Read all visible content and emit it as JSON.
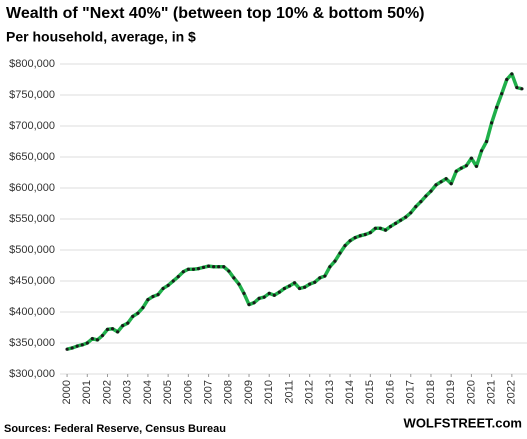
{
  "chart_data": {
    "type": "line",
    "title": "Wealth of \"Next 40%\" (between top 10% & bottom 50%)",
    "subtitle": "Per household, average, in $",
    "source": "Sources: Federal Reserve, Census Bureau",
    "watermark": "WOLFSTREET.com",
    "x": [
      2000,
      2000.25,
      2000.5,
      2000.75,
      2001,
      2001.25,
      2001.5,
      2001.75,
      2002,
      2002.25,
      2002.5,
      2002.75,
      2003,
      2003.25,
      2003.5,
      2003.75,
      2004,
      2004.25,
      2004.5,
      2004.75,
      2005,
      2005.25,
      2005.5,
      2005.75,
      2006,
      2006.25,
      2006.5,
      2006.75,
      2007,
      2007.25,
      2007.5,
      2007.75,
      2008,
      2008.25,
      2008.5,
      2008.75,
      2009,
      2009.25,
      2009.5,
      2009.75,
      2010,
      2010.25,
      2010.5,
      2010.75,
      2011,
      2011.25,
      2011.5,
      2011.75,
      2012,
      2012.25,
      2012.5,
      2012.75,
      2013,
      2013.25,
      2013.5,
      2013.75,
      2014,
      2014.25,
      2014.5,
      2014.75,
      2015,
      2015.25,
      2015.5,
      2015.75,
      2016,
      2016.25,
      2016.5,
      2016.75,
      2017,
      2017.25,
      2017.5,
      2017.75,
      2018,
      2018.25,
      2018.5,
      2018.75,
      2019,
      2019.25,
      2019.5,
      2019.75,
      2020,
      2020.25,
      2020.5,
      2020.75,
      2021,
      2021.25,
      2021.5,
      2021.75,
      2022,
      2022.25,
      2022.5
    ],
    "series": [
      {
        "name": "Next 40%",
        "color": "#1fb04a",
        "marker_color": "#1a1a1a",
        "values": [
          340000,
          342000,
          345000,
          347000,
          350000,
          357000,
          355000,
          362000,
          372000,
          373000,
          368000,
          378000,
          382000,
          393000,
          398000,
          407000,
          420000,
          425000,
          428000,
          438000,
          443000,
          450000,
          457000,
          465000,
          469000,
          469000,
          470000,
          472000,
          474000,
          473000,
          473000,
          473000,
          466000,
          455000,
          445000,
          430000,
          412000,
          415000,
          422000,
          424000,
          430000,
          427000,
          432000,
          438000,
          442000,
          447000,
          438000,
          440000,
          445000,
          448000,
          455000,
          458000,
          473000,
          482000,
          495000,
          507000,
          515000,
          520000,
          523000,
          525000,
          528000,
          535000,
          535000,
          532000,
          538000,
          543000,
          548000,
          553000,
          560000,
          570000,
          578000,
          587000,
          595000,
          605000,
          610000,
          615000,
          607000,
          627000,
          632000,
          636000,
          648000,
          635000,
          660000,
          675000,
          705000,
          730000,
          752000,
          775000,
          784000,
          762000,
          760000
        ]
      }
    ],
    "xlim": [
      1999.65,
      2022.75
    ],
    "xticks": [
      2000,
      2001,
      2002,
      2003,
      2004,
      2005,
      2006,
      2007,
      2008,
      2009,
      2010,
      2011,
      2012,
      2013,
      2014,
      2015,
      2016,
      2017,
      2018,
      2019,
      2020,
      2021,
      2022
    ],
    "ylim": [
      300000,
      800000
    ],
    "yticks": [
      {
        "value": 300000,
        "label": "$300,000"
      },
      {
        "value": 350000,
        "label": "$350,000"
      },
      {
        "value": 400000,
        "label": "$400,000"
      },
      {
        "value": 450000,
        "label": "$450,000"
      },
      {
        "value": 500000,
        "label": "$500,000"
      },
      {
        "value": 550000,
        "label": "$550,000"
      },
      {
        "value": 600000,
        "label": "$600,000"
      },
      {
        "value": 650000,
        "label": "$650,000"
      },
      {
        "value": 700000,
        "label": "$700,000"
      },
      {
        "value": 750000,
        "label": "$750,000"
      },
      {
        "value": 800000,
        "label": "$800,000"
      }
    ],
    "grid": true
  }
}
